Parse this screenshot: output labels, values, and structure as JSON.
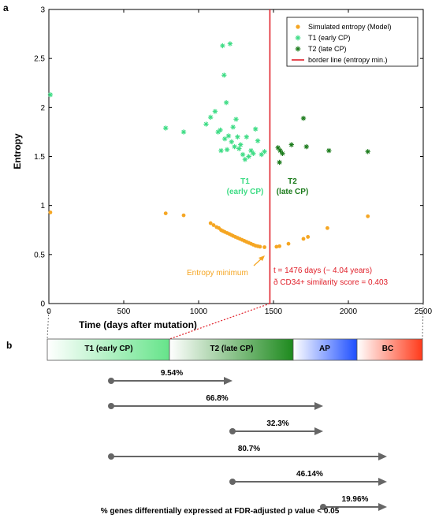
{
  "panels": {
    "a": "a",
    "b": "b"
  },
  "chart_data": {
    "type": "scatter",
    "xlabel": "Time (days after mutation)",
    "ylabel": "Entropy",
    "xlim": [
      0,
      2500
    ],
    "ylim": [
      0,
      3
    ],
    "xticks": [
      {
        "v": 0,
        "label": "0"
      },
      {
        "v": 500,
        "label": "500"
      },
      {
        "v": 1000,
        "label": "1000"
      },
      {
        "v": 1500,
        "label": "1500"
      },
      {
        "v": 2000,
        "label": "2000"
      },
      {
        "v": 2500,
        "label": "2500"
      }
    ],
    "yticks": [
      {
        "v": 0,
        "label": "0"
      },
      {
        "v": 0.5,
        "label": "0.5"
      },
      {
        "v": 1,
        "label": "1"
      },
      {
        "v": 1.5,
        "label": "1.5"
      },
      {
        "v": 2,
        "label": "2"
      },
      {
        "v": 2.5,
        "label": "2.5"
      },
      {
        "v": 3,
        "label": "3"
      }
    ],
    "grid": false,
    "legend": {
      "position": "top-right",
      "entries": [
        {
          "label": "Simulated entropy (Model)",
          "color": "#f5a623",
          "marker": "dot"
        },
        {
          "label": "T1 (early CP)",
          "color": "#3ddc84",
          "marker": "star"
        },
        {
          "label": "T2 (late CP)",
          "color": "#1a7a1a",
          "marker": "star"
        },
        {
          "label": "border line (entropy min.)",
          "color": "#e0202a",
          "marker": "line"
        }
      ]
    },
    "border_line_x": 1476,
    "series": [
      {
        "name": "Simulated entropy (Model)",
        "color": "#f5a623",
        "marker": "dot",
        "points": [
          [
            10,
            0.93
          ],
          [
            780,
            0.92
          ],
          [
            900,
            0.9
          ],
          [
            1080,
            0.82
          ],
          [
            1100,
            0.8
          ],
          [
            1120,
            0.78
          ],
          [
            1135,
            0.77
          ],
          [
            1150,
            0.75
          ],
          [
            1162,
            0.74
          ],
          [
            1175,
            0.73
          ],
          [
            1190,
            0.72
          ],
          [
            1205,
            0.71
          ],
          [
            1218,
            0.7
          ],
          [
            1230,
            0.69
          ],
          [
            1245,
            0.68
          ],
          [
            1260,
            0.67
          ],
          [
            1275,
            0.66
          ],
          [
            1290,
            0.65
          ],
          [
            1305,
            0.64
          ],
          [
            1320,
            0.63
          ],
          [
            1335,
            0.62
          ],
          [
            1350,
            0.61
          ],
          [
            1365,
            0.6
          ],
          [
            1380,
            0.59
          ],
          [
            1395,
            0.585
          ],
          [
            1410,
            0.58
          ],
          [
            1440,
            0.575
          ],
          [
            1520,
            0.58
          ],
          [
            1540,
            0.585
          ],
          [
            1600,
            0.61
          ],
          [
            1700,
            0.66
          ],
          [
            1730,
            0.68
          ],
          [
            1860,
            0.77
          ],
          [
            2130,
            0.89
          ]
        ]
      },
      {
        "name": "T1 (early CP)",
        "color": "#3ddc84",
        "marker": "star",
        "points": [
          [
            10,
            2.13
          ],
          [
            780,
            1.79
          ],
          [
            900,
            1.75
          ],
          [
            1050,
            1.83
          ],
          [
            1080,
            1.9
          ],
          [
            1110,
            1.96
          ],
          [
            1130,
            1.75
          ],
          [
            1145,
            1.77
          ],
          [
            1150,
            1.56
          ],
          [
            1160,
            2.63
          ],
          [
            1170,
            2.33
          ],
          [
            1175,
            1.68
          ],
          [
            1185,
            2.05
          ],
          [
            1190,
            1.57
          ],
          [
            1200,
            1.71
          ],
          [
            1210,
            2.65
          ],
          [
            1220,
            1.65
          ],
          [
            1230,
            1.8
          ],
          [
            1240,
            1.6
          ],
          [
            1250,
            1.88
          ],
          [
            1260,
            1.7
          ],
          [
            1270,
            1.58
          ],
          [
            1280,
            1.62
          ],
          [
            1295,
            1.52
          ],
          [
            1310,
            1.47
          ],
          [
            1320,
            1.7
          ],
          [
            1335,
            1.5
          ],
          [
            1350,
            1.56
          ],
          [
            1365,
            1.53
          ],
          [
            1380,
            1.78
          ],
          [
            1395,
            1.66
          ],
          [
            1420,
            1.52
          ],
          [
            1440,
            1.55
          ]
        ]
      },
      {
        "name": "T2 (late CP)",
        "color": "#1a7a1a",
        "marker": "star",
        "points": [
          [
            1530,
            1.59
          ],
          [
            1540,
            1.44
          ],
          [
            1545,
            1.56
          ],
          [
            1560,
            1.53
          ],
          [
            1620,
            1.62
          ],
          [
            1700,
            1.89
          ],
          [
            1720,
            1.6
          ],
          [
            1870,
            1.56
          ],
          [
            2130,
            1.55
          ]
        ]
      }
    ],
    "annotations": {
      "t1_line1": "T1",
      "t1_line2": "(early CP)",
      "t2_line1": "T2",
      "t2_line2": "(late CP)",
      "entropy_min": "Entropy minimum",
      "t_days": "t = 1476 days (~ 4.04 years)",
      "similarity": "ð CD34+ similarity score = 0.403"
    },
    "stages": [
      {
        "label": "T1 (early CP)",
        "from": "#ffffff",
        "to": "#66e48a"
      },
      {
        "label": "T2 (late CP)",
        "from": "#ffffff",
        "to": "#1e8a1e"
      },
      {
        "label": "AP",
        "from": "#ffffff",
        "to": "#1e4fff"
      },
      {
        "label": "BC",
        "from": "#ffffff",
        "to": "#ff3a1a"
      }
    ],
    "comparisons": [
      {
        "label": "9.54%",
        "from_stage": 1,
        "to_stage": 2
      },
      {
        "label": "66.8%",
        "from_stage": 1,
        "to_stage": 3
      },
      {
        "label": "32.3%",
        "from_stage": 2,
        "to_stage": 3
      },
      {
        "label": "80.7%",
        "from_stage": 1,
        "to_stage": 4
      },
      {
        "label": "46.14%",
        "from_stage": 2,
        "to_stage": 4
      },
      {
        "label": "19.96%",
        "from_stage": 3,
        "to_stage": 4
      }
    ],
    "footer": "% genes differentially expressed at FDR-adjusted p value < 0.05"
  }
}
